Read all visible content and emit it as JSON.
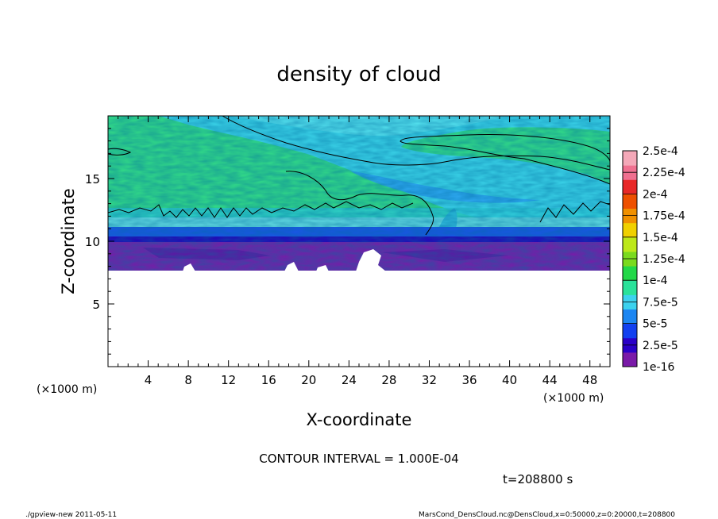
{
  "chart_data": {
    "type": "heatmap",
    "title": "density of cloud",
    "xlabel": "X-coordinate",
    "ylabel": "Z-coordinate",
    "x_unit_left": "(×1000 m)",
    "x_unit_right": "(×1000 m)",
    "xlim": [
      0,
      50
    ],
    "ylim": [
      0,
      20
    ],
    "x_ticks": [
      4,
      8,
      12,
      16,
      20,
      24,
      28,
      32,
      36,
      40,
      44,
      48
    ],
    "y_ticks": [
      5,
      10,
      15
    ],
    "colorbar": {
      "labels": [
        "1e-16",
        "2.5e-5",
        "5e-5",
        "7.5e-5",
        "1e-4",
        "1.25e-4",
        "1.5e-4",
        "1.75e-4",
        "2e-4",
        "2.25e-4",
        "2.5e-4"
      ],
      "colors": [
        "#7a1aa8",
        "#2a00c8",
        "#1240f0",
        "#1c86f2",
        "#3cd2ee",
        "#2ae29a",
        "#22d848",
        "#7ada1e",
        "#bde81a",
        "#f0d000",
        "#f09000",
        "#ee5000",
        "#e82828",
        "#f07090",
        "#f4a8b8"
      ]
    },
    "cloud_base_z": 7.8,
    "cloud_top_z": 20,
    "contour_interval_text": "CONTOUR INTERVAL = 1.000E-04",
    "time_text": "t=208800 s"
  },
  "footer": {
    "program": "./gpview-new  2011-05-11",
    "source": "MarsCond_DensCloud.nc@DensCloud,x=0:50000,z=0:20000,t=208800"
  }
}
